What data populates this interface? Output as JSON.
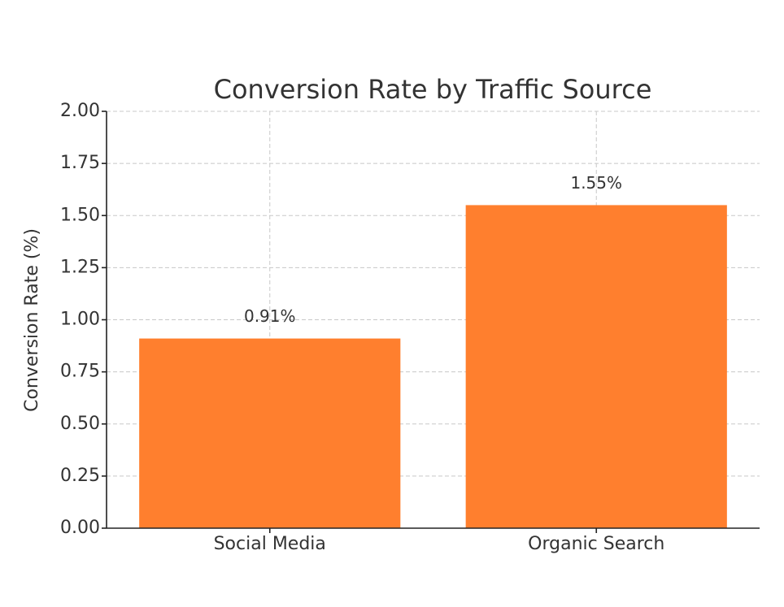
{
  "chart_data": {
    "type": "bar",
    "title": "Conversion Rate by Traffic Source",
    "y_label": "Conversion Rate (%)",
    "categories": [
      "Social Media",
      "Organic Search"
    ],
    "values": [
      0.91,
      1.55
    ],
    "value_labels": [
      "0.91%",
      "1.55%"
    ],
    "color": "#ff7f2e",
    "ylim": [
      0,
      2
    ],
    "yticks": [
      {
        "value": 0,
        "label": "0.00"
      },
      {
        "value": 0.25,
        "label": "0.25"
      },
      {
        "value": 0.5,
        "label": "0.50"
      },
      {
        "value": 0.75,
        "label": "0.75"
      },
      {
        "value": 1,
        "label": "1.00"
      },
      {
        "value": 1.25,
        "label": "1.25"
      },
      {
        "value": 1.5,
        "label": "1.50"
      },
      {
        "value": 1.75,
        "label": "1.75"
      },
      {
        "value": 2,
        "label": "2.00"
      }
    ],
    "grid": true
  }
}
